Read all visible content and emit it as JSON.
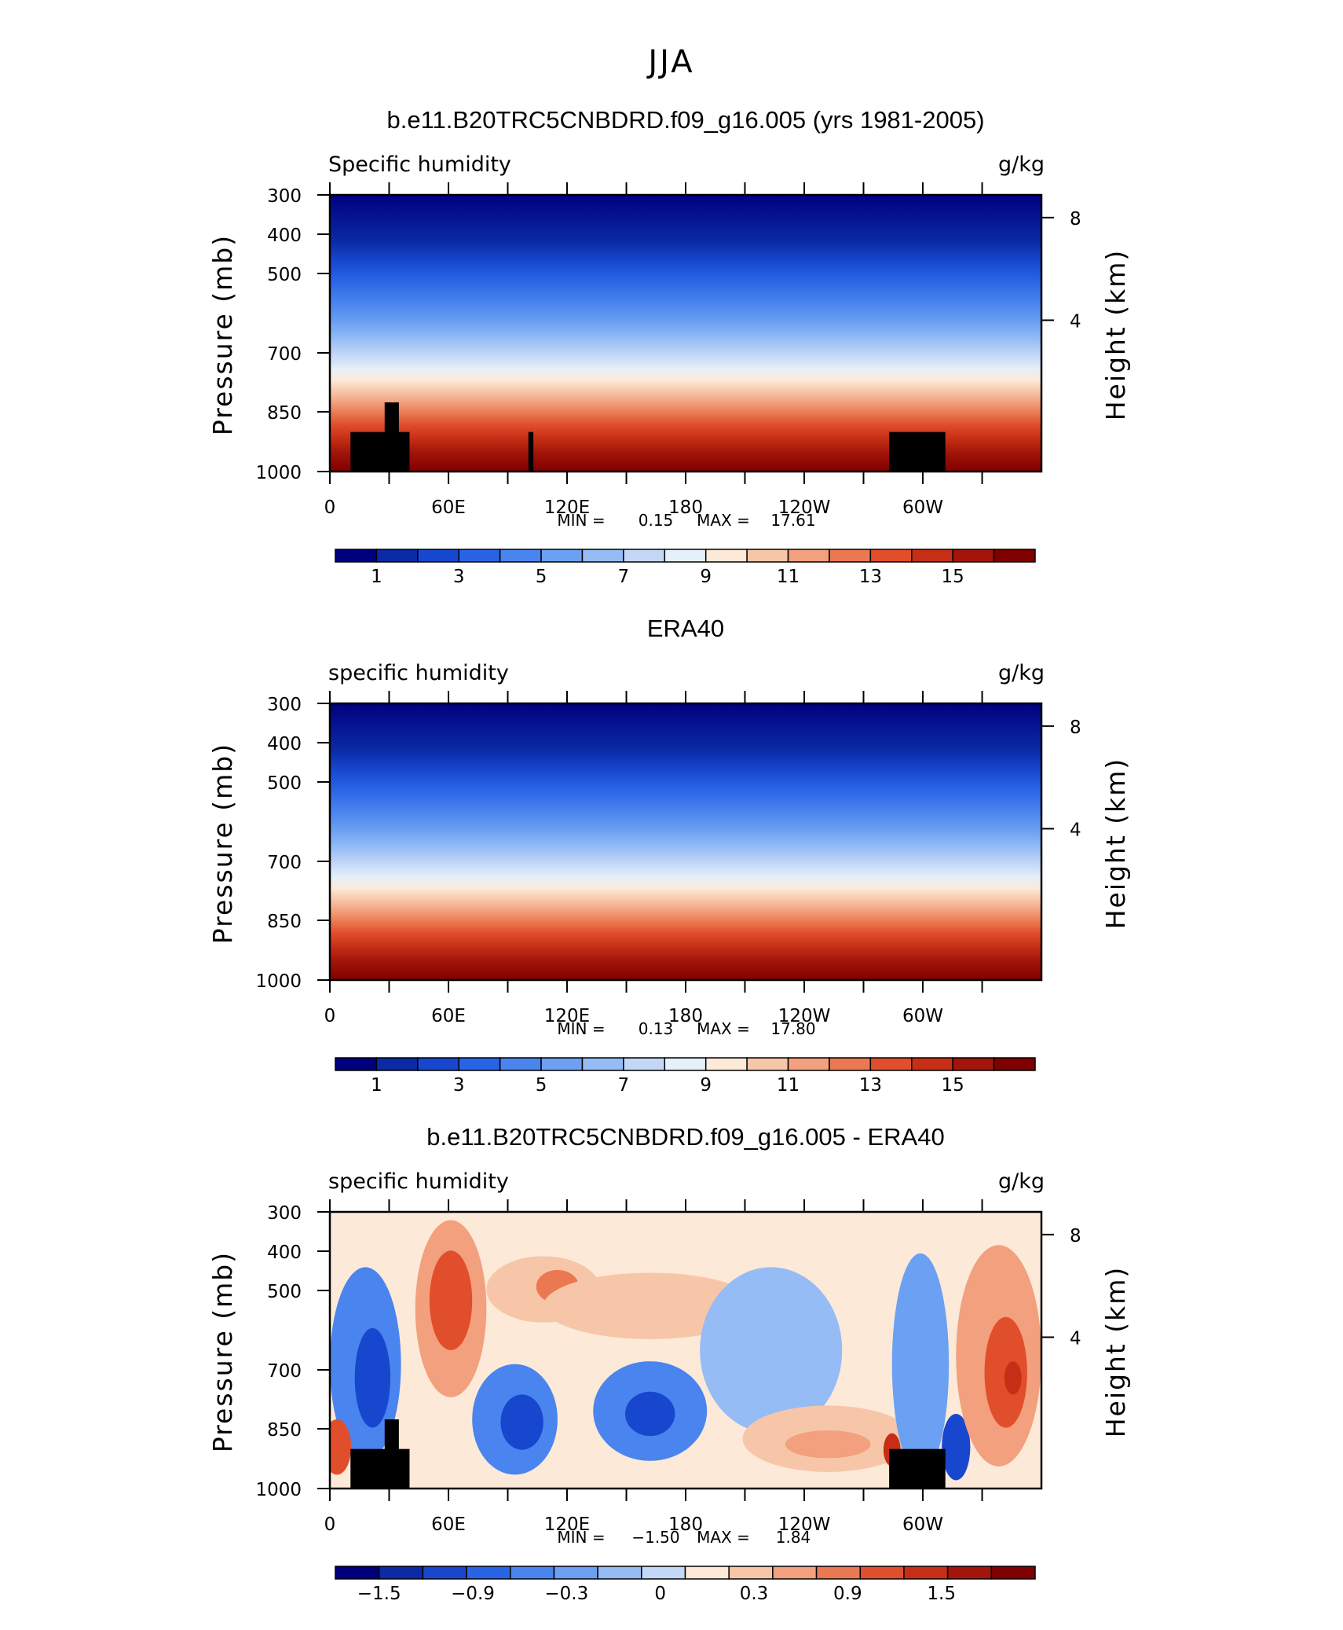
{
  "figure": {
    "title": "JJA"
  },
  "chart_data": [
    {
      "type": "heatmap",
      "title": "b.e11.B20TRC5CNBDRD.f09_g16.005 (yrs 1981-2005)",
      "left_label": "Specific humidity",
      "units": "g/kg",
      "ylabel": "Pressure (mb)",
      "y2label": "Height (km)",
      "x_ticks": [
        "0",
        "60E",
        "120E",
        "180",
        "120W",
        "60W"
      ],
      "y_ticks": [
        "300",
        "400",
        "500",
        "700",
        "850",
        "1000"
      ],
      "y2_ticks": [
        "8",
        "4"
      ],
      "min_label": "MIN =",
      "min_value": "0.15",
      "max_label": "MAX =",
      "max_value": "17.61",
      "colorbar_labels": [
        "1",
        "3",
        "5",
        "7",
        "9",
        "11",
        "13",
        "15"
      ],
      "colorbar_colors": [
        "#00007f",
        "#0b2aa6",
        "#1747cf",
        "#2a64e6",
        "#4a84ee",
        "#6ba0f2",
        "#95bcf5",
        "#c3d8f7",
        "#e6f0fa",
        "#fde9d8",
        "#f7c6a8",
        "#f2a07d",
        "#ea7851",
        "#e14e2c",
        "#c62f16",
        "#a3150a",
        "#7f0000"
      ],
      "has_topography": true
    },
    {
      "type": "heatmap",
      "title": "ERA40",
      "left_label": "specific humidity",
      "units": "g/kg",
      "ylabel": "Pressure (mb)",
      "y2label": "Height (km)",
      "x_ticks": [
        "0",
        "60E",
        "120E",
        "180",
        "120W",
        "60W"
      ],
      "y_ticks": [
        "300",
        "400",
        "500",
        "700",
        "850",
        "1000"
      ],
      "y2_ticks": [
        "8",
        "4"
      ],
      "min_label": "MIN =",
      "min_value": "0.13",
      "max_label": "MAX =",
      "max_value": "17.80",
      "colorbar_labels": [
        "1",
        "3",
        "5",
        "7",
        "9",
        "11",
        "13",
        "15"
      ],
      "colorbar_colors": [
        "#00007f",
        "#0b2aa6",
        "#1747cf",
        "#2a64e6",
        "#4a84ee",
        "#6ba0f2",
        "#95bcf5",
        "#c3d8f7",
        "#e6f0fa",
        "#fde9d8",
        "#f7c6a8",
        "#f2a07d",
        "#ea7851",
        "#e14e2c",
        "#c62f16",
        "#a3150a",
        "#7f0000"
      ],
      "has_topography": false
    },
    {
      "type": "heatmap",
      "title": "b.e11.B20TRC5CNBDRD.f09_g16.005 - ERA40",
      "left_label": "specific humidity",
      "units": "g/kg",
      "ylabel": "Pressure (mb)",
      "y2label": "Height (km)",
      "x_ticks": [
        "0",
        "60E",
        "120E",
        "180",
        "120W",
        "60W"
      ],
      "y_ticks": [
        "300",
        "400",
        "500",
        "700",
        "850",
        "1000"
      ],
      "y2_ticks": [
        "8",
        "4"
      ],
      "min_label": "MIN =",
      "min_value": "−1.50",
      "max_label": "MAX =",
      "max_value": "1.84",
      "colorbar_labels": [
        "−1.5",
        "−0.9",
        "−0.3",
        "0",
        "0.3",
        "0.9",
        "1.5"
      ],
      "colorbar_colors": [
        "#00007f",
        "#0b2aa6",
        "#1747cf",
        "#2a64e6",
        "#4a84ee",
        "#6ba0f2",
        "#95bcf5",
        "#c3d8f7",
        "#fde9d8",
        "#f7c6a8",
        "#f2a07d",
        "#ea7851",
        "#e14e2c",
        "#c62f16",
        "#a3150a",
        "#7f0000"
      ],
      "has_topography": true
    }
  ]
}
